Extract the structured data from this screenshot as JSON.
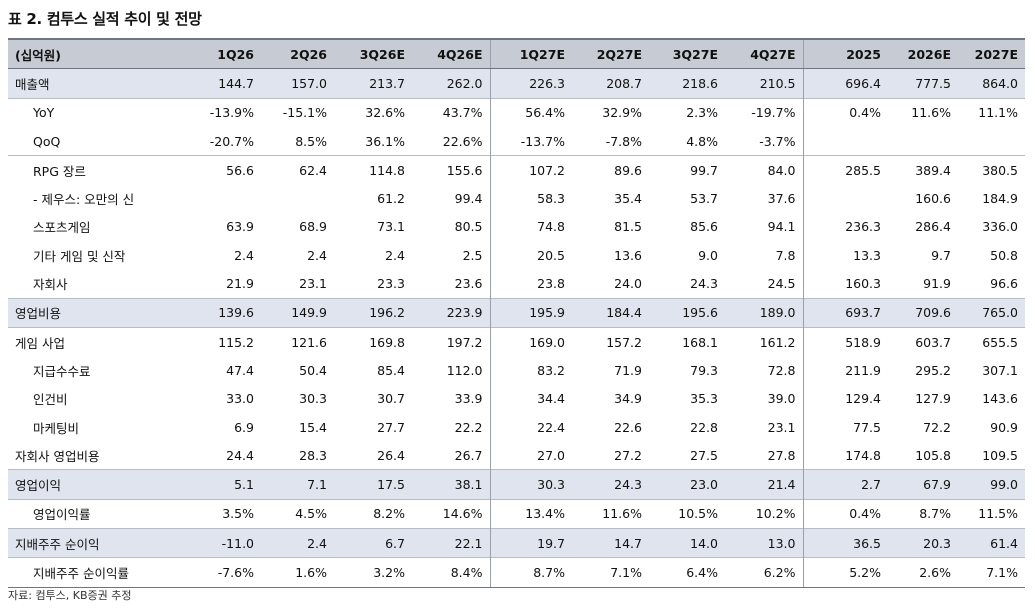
{
  "title": "표 2. 컴투스 실적 추이 및 전망",
  "source": "자료: 컴투스, KB증권 추정",
  "table": {
    "columns": [
      "(십억원)",
      "1Q26",
      "2Q26",
      "3Q26E",
      "4Q26E",
      "1Q27E",
      "2Q27E",
      "3Q27E",
      "4Q27E",
      "2025",
      "2026E",
      "2027E"
    ],
    "rows": [
      {
        "label": "매출액",
        "cells": [
          "144.7",
          "157.0",
          "213.7",
          "262.0",
          "226.3",
          "208.7",
          "218.6",
          "210.5",
          "696.4",
          "777.5",
          "864.0"
        ]
      },
      {
        "label": "YoY",
        "cells": [
          "-13.9%",
          "-15.1%",
          "32.6%",
          "43.7%",
          "56.4%",
          "32.9%",
          "2.3%",
          "-19.7%",
          "0.4%",
          "11.6%",
          "11.1%"
        ]
      },
      {
        "label": "QoQ",
        "cells": [
          "-20.7%",
          "8.5%",
          "36.1%",
          "22.6%",
          "-13.7%",
          "-7.8%",
          "4.8%",
          "-3.7%",
          "",
          "",
          ""
        ]
      },
      {
        "label": "RPG 장르",
        "cells": [
          "56.6",
          "62.4",
          "114.8",
          "155.6",
          "107.2",
          "89.6",
          "99.7",
          "84.0",
          "285.5",
          "389.4",
          "380.5"
        ]
      },
      {
        "label": "- 제우스: 오만의 신",
        "cells": [
          "",
          "",
          "61.2",
          "99.4",
          "58.3",
          "35.4",
          "53.7",
          "37.6",
          "",
          "160.6",
          "184.9"
        ]
      },
      {
        "label": "스포츠게임",
        "cells": [
          "63.9",
          "68.9",
          "73.1",
          "80.5",
          "74.8",
          "81.5",
          "85.6",
          "94.1",
          "236.3",
          "286.4",
          "336.0"
        ]
      },
      {
        "label": "기타 게임 및 신작",
        "cells": [
          "2.4",
          "2.4",
          "2.4",
          "2.5",
          "20.5",
          "13.6",
          "9.0",
          "7.8",
          "13.3",
          "9.7",
          "50.8"
        ]
      },
      {
        "label": "자회사",
        "cells": [
          "21.9",
          "23.1",
          "23.3",
          "23.6",
          "23.8",
          "24.0",
          "24.3",
          "24.5",
          "160.3",
          "91.9",
          "96.6"
        ]
      },
      {
        "label": "영업비용",
        "cells": [
          "139.6",
          "149.9",
          "196.2",
          "223.9",
          "195.9",
          "184.4",
          "195.6",
          "189.0",
          "693.7",
          "709.6",
          "765.0"
        ]
      },
      {
        "label": "게임 사업",
        "cells": [
          "115.2",
          "121.6",
          "169.8",
          "197.2",
          "169.0",
          "157.2",
          "168.1",
          "161.2",
          "518.9",
          "603.7",
          "655.5"
        ]
      },
      {
        "label": "지급수수료",
        "cells": [
          "47.4",
          "50.4",
          "85.4",
          "112.0",
          "83.2",
          "71.9",
          "79.3",
          "72.8",
          "211.9",
          "295.2",
          "307.1"
        ]
      },
      {
        "label": "인건비",
        "cells": [
          "33.0",
          "30.3",
          "30.7",
          "33.9",
          "34.4",
          "34.9",
          "35.3",
          "39.0",
          "129.4",
          "127.9",
          "143.6"
        ]
      },
      {
        "label": "마케팅비",
        "cells": [
          "6.9",
          "15.4",
          "27.7",
          "22.2",
          "22.4",
          "22.6",
          "22.8",
          "23.1",
          "77.5",
          "72.2",
          "90.9"
        ]
      },
      {
        "label": "자회사 영업비용",
        "cells": [
          "24.4",
          "28.3",
          "26.4",
          "26.7",
          "27.0",
          "27.2",
          "27.5",
          "27.8",
          "174.8",
          "105.8",
          "109.5"
        ]
      },
      {
        "label": "영업이익",
        "cells": [
          "5.1",
          "7.1",
          "17.5",
          "38.1",
          "30.3",
          "24.3",
          "23.0",
          "21.4",
          "2.7",
          "67.9",
          "99.0"
        ]
      },
      {
        "label": "영업이익률",
        "cells": [
          "3.5%",
          "4.5%",
          "8.2%",
          "14.6%",
          "13.4%",
          "11.6%",
          "10.5%",
          "10.2%",
          "0.4%",
          "8.7%",
          "11.5%"
        ]
      },
      {
        "label": "지배주주 순이익",
        "cells": [
          "-11.0",
          "2.4",
          "6.7",
          "22.1",
          "19.7",
          "14.7",
          "14.0",
          "13.0",
          "36.5",
          "20.3",
          "61.4"
        ]
      },
      {
        "label": "지배주주 순이익률",
        "cells": [
          "-7.6%",
          "1.6%",
          "3.2%",
          "8.4%",
          "8.7%",
          "7.1%",
          "6.4%",
          "6.2%",
          "5.2%",
          "2.6%",
          "7.1%"
        ]
      }
    ]
  }
}
